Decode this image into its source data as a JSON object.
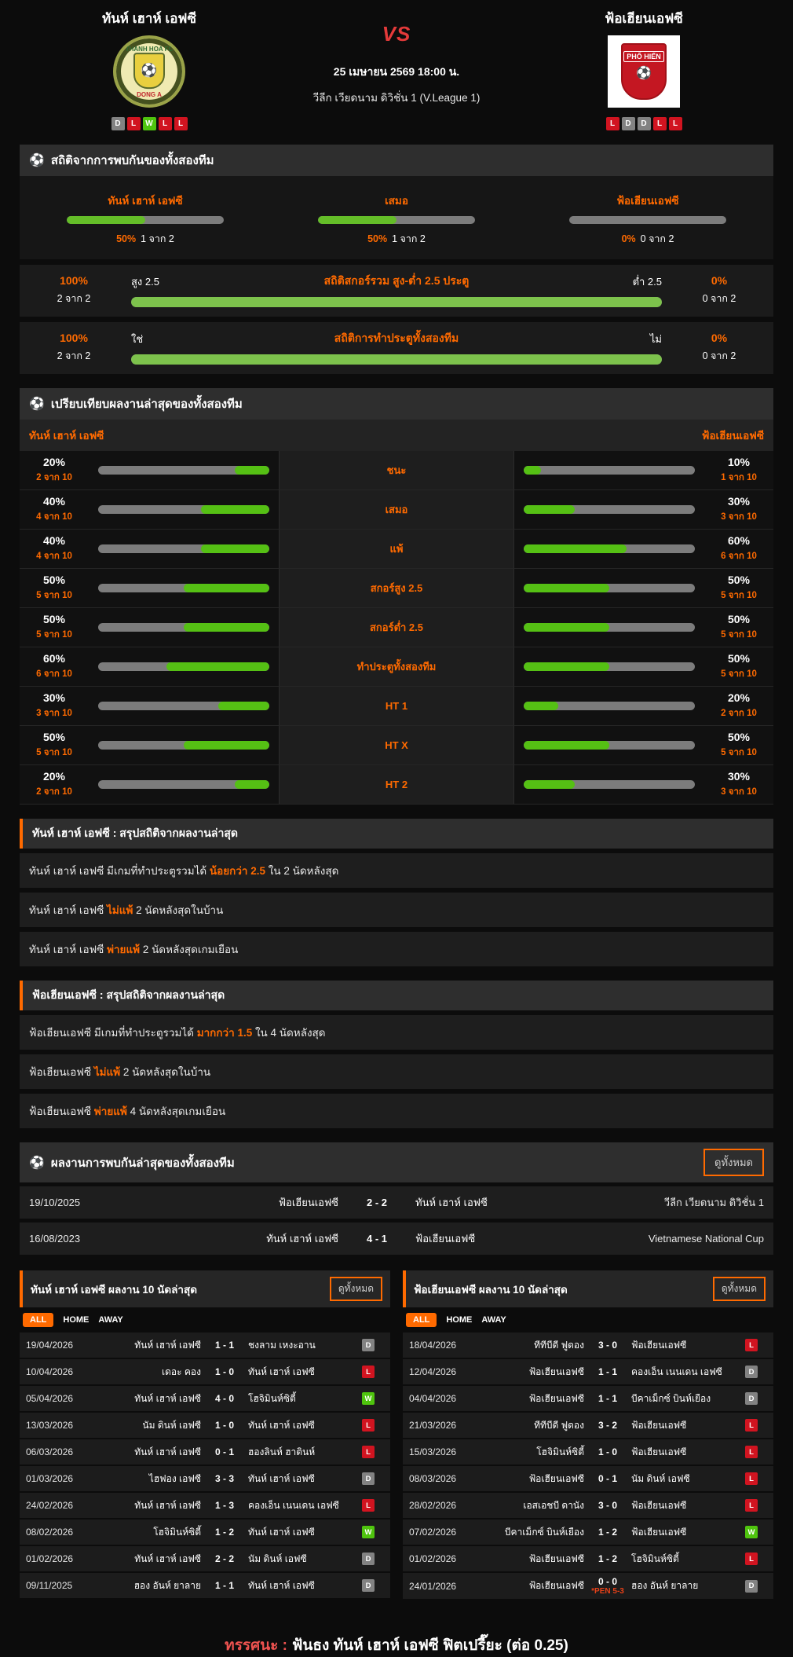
{
  "colors": {
    "accent": "#ff6a00",
    "green": "#55c014",
    "red": "#d11420",
    "gray": "#828282",
    "vs_red": "#e43a3a"
  },
  "header": {
    "home_team": "ทันห์ เฮาห์ เอฟซี",
    "away_team": "ฟ้อเฮียนเอฟซี",
    "vs": "VS",
    "datetime": "25 เมษายน 2569 18:00 น.",
    "league": "วีลีก เวียดนาม ดิวิชั่น 1 (V.League 1)",
    "home_logo": {
      "top": "THANH HOA FC",
      "bottom": "DONG A",
      "ball": "⚽"
    },
    "away_logo": {
      "text": "PHỐ HIẾN",
      "ball": "⚽"
    },
    "home_form": [
      "D",
      "L",
      "W",
      "L",
      "L"
    ],
    "away_form": [
      "L",
      "D",
      "D",
      "L",
      "L"
    ]
  },
  "h2h_stats": {
    "icon": "⚽",
    "title": "สถิติจากการพบกันของทั้งสองทีม",
    "cols": [
      {
        "label": "ทันห์ เฮาห์ เอฟซี",
        "pct": 50,
        "pct_label": "50%",
        "count": "1 จาก 2"
      },
      {
        "label": "เสมอ",
        "pct": 50,
        "pct_label": "50%",
        "count": "1 จาก 2"
      },
      {
        "label": "ฟ้อเฮียนเอฟซี",
        "pct": 0,
        "pct_label": "0%",
        "count": "0 จาก 2"
      }
    ],
    "ou": {
      "title": "สถิติสกอร์รวม สูง-ต่ำ 2.5 ประตู",
      "left_pct": "100%",
      "left_count": "2 จาก 2",
      "left_label": "สูง 2.5",
      "right_label": "ต่ำ 2.5",
      "right_pct": "0%",
      "right_count": "0 จาก 2",
      "pct": 100
    },
    "btts": {
      "title": "สถิติการทำประตูทั้งสองทีม",
      "left_pct": "100%",
      "left_count": "2 จาก 2",
      "left_label": "ใช่",
      "right_label": "ไม่",
      "right_pct": "0%",
      "right_count": "0 จาก 2",
      "pct": 100
    }
  },
  "compare": {
    "icon": "⚽",
    "title": "เปรียบเทียบผลงานล่าสุดของทั้งสองทีม",
    "home_team": "ทันห์ เฮาห์ เอฟซี",
    "away_team": "ฟ้อเฮียนเอฟซี",
    "rows": [
      {
        "label": "ชนะ",
        "home_pct_label": "20%",
        "home_count": "2 จาก 10",
        "home_pct": 20,
        "away_pct_label": "10%",
        "away_count": "1 จาก 10",
        "away_pct": 10
      },
      {
        "label": "เสมอ",
        "home_pct_label": "40%",
        "home_count": "4 จาก 10",
        "home_pct": 40,
        "away_pct_label": "30%",
        "away_count": "3 จาก 10",
        "away_pct": 30
      },
      {
        "label": "แพ้",
        "home_pct_label": "40%",
        "home_count": "4 จาก 10",
        "home_pct": 40,
        "away_pct_label": "60%",
        "away_count": "6 จาก 10",
        "away_pct": 60
      },
      {
        "label": "สกอร์สูง 2.5",
        "home_pct_label": "50%",
        "home_count": "5 จาก 10",
        "home_pct": 50,
        "away_pct_label": "50%",
        "away_count": "5 จาก 10",
        "away_pct": 50
      },
      {
        "label": "สกอร์ต่ำ 2.5",
        "home_pct_label": "50%",
        "home_count": "5 จาก 10",
        "home_pct": 50,
        "away_pct_label": "50%",
        "away_count": "5 จาก 10",
        "away_pct": 50
      },
      {
        "label": "ทำประตูทั้งสองทีม",
        "home_pct_label": "60%",
        "home_count": "6 จาก 10",
        "home_pct": 60,
        "away_pct_label": "50%",
        "away_count": "5 จาก 10",
        "away_pct": 50
      },
      {
        "label": "HT 1",
        "home_pct_label": "30%",
        "home_count": "3 จาก 10",
        "home_pct": 30,
        "away_pct_label": "20%",
        "away_count": "2 จาก 10",
        "away_pct": 20
      },
      {
        "label": "HT X",
        "home_pct_label": "50%",
        "home_count": "5 จาก 10",
        "home_pct": 50,
        "away_pct_label": "50%",
        "away_count": "5 จาก 10",
        "away_pct": 50
      },
      {
        "label": "HT 2",
        "home_pct_label": "20%",
        "home_count": "2 จาก 10",
        "home_pct": 20,
        "away_pct_label": "30%",
        "away_count": "3 จาก 10",
        "away_pct": 30
      }
    ]
  },
  "home_summary": {
    "title": "ทันห์ เฮาห์ เอฟซี : สรุปสถิติจากผลงานล่าสุด",
    "rows": [
      {
        "pre": "ทันห์ เฮาห์ เอฟซี  มีเกมที่ทำประตูรวมได้ ",
        "hl": "น้อยกว่า  2.5",
        "post": " ใน 2 นัดหลังสุด"
      },
      {
        "pre": "ทันห์ เฮาห์ เอฟซี ",
        "hl": "ไม่แพ้",
        "post": " 2 นัดหลังสุดในบ้าน"
      },
      {
        "pre": "ทันห์ เฮาห์ เอฟซี ",
        "hl": "พ่ายแพ้",
        "post": " 2 นัดหลังสุดเกมเยือน"
      }
    ]
  },
  "away_summary": {
    "title": "ฟ้อเฮียนเอฟซี : สรุปสถิติจากผลงานล่าสุด",
    "rows": [
      {
        "pre": "ฟ้อเฮียนเอฟซี  มีเกมที่ทำประตูรวมได้ ",
        "hl": "มากกว่า  1.5",
        "post": " ใน 4 นัดหลังสุด"
      },
      {
        "pre": "ฟ้อเฮียนเอฟซี ",
        "hl": "ไม่แพ้",
        "post": " 2 นัดหลังสุดในบ้าน"
      },
      {
        "pre": "ฟ้อเฮียนเอฟซี ",
        "hl": "พ่ายแพ้",
        "post": " 4 นัดหลังสุดเกมเยือน"
      }
    ]
  },
  "h2h_results": {
    "icon": "⚽",
    "title": "ผลงานการพบกันล่าสุดของทั้งสองทีม",
    "view_all": "ดูทั้งหมด",
    "rows": [
      {
        "date": "19/10/2025",
        "home": "ฟ้อเฮียนเอฟซี",
        "score": "2 - 2",
        "away": "ทันห์ เฮาห์ เอฟซี",
        "league": "วีลีก เวียดนาม ดิวิชั่น 1"
      },
      {
        "date": "16/08/2023",
        "home": "ทันห์ เฮาห์ เอฟซี",
        "score": "4 - 1",
        "away": "ฟ้อเฮียนเอฟซี",
        "league": "Vietnamese National Cup"
      }
    ]
  },
  "home_recent": {
    "title": "ทันห์ เฮาห์ เอฟซี ผลงาน 10 นัดล่าสุด",
    "view_all": "ดูทั้งหมด",
    "tabs": {
      "all": "ALL",
      "home": "HOME",
      "away": "AWAY"
    },
    "rows": [
      {
        "date": "19/04/2026",
        "home": "ทันห์ เฮาห์ เอฟซี",
        "score": "1 - 1",
        "away": "ชงลาม เหงะอาน",
        "result": "D"
      },
      {
        "date": "10/04/2026",
        "home": "เดอะ คอง",
        "score": "1 - 0",
        "away": "ทันห์ เฮาห์ เอฟซี",
        "result": "L"
      },
      {
        "date": "05/04/2026",
        "home": "ทันห์ เฮาห์ เอฟซี",
        "score": "4 - 0",
        "away": "โฮจิมินห์ซิตี้",
        "result": "W"
      },
      {
        "date": "13/03/2026",
        "home": "นัม ดินห์ เอฟซี",
        "score": "1 - 0",
        "away": "ทันห์ เฮาห์ เอฟซี",
        "result": "L"
      },
      {
        "date": "06/03/2026",
        "home": "ทันห์ เฮาห์ เอฟซี",
        "score": "0 - 1",
        "away": "ฮองลินห์ ฮาตินห์",
        "result": "L"
      },
      {
        "date": "01/03/2026",
        "home": "ไฮฟอง เอฟซี",
        "score": "3 - 3",
        "away": "ทันห์ เฮาห์ เอฟซี",
        "result": "D"
      },
      {
        "date": "24/02/2026",
        "home": "ทันห์ เฮาห์ เอฟซี",
        "score": "1 - 3",
        "away": "คองเอ็น เนนเดน เอฟซี",
        "result": "L"
      },
      {
        "date": "08/02/2026",
        "home": "โฮจิมินห์ซิตี้",
        "score": "1 - 2",
        "away": "ทันห์ เฮาห์ เอฟซี",
        "result": "W"
      },
      {
        "date": "01/02/2026",
        "home": "ทันห์ เฮาห์ เอฟซี",
        "score": "2 - 2",
        "away": "นัม ดินห์ เอฟซี",
        "result": "D"
      },
      {
        "date": "09/11/2025",
        "home": "ฮอง อันห์ ยาลาย",
        "score": "1 - 1",
        "away": "ทันห์ เฮาห์ เอฟซี",
        "result": "D"
      }
    ]
  },
  "away_recent": {
    "title": "ฟ้อเฮียนเอฟซี ผลงาน 10 นัดล่าสุด",
    "view_all": "ดูทั้งหมด",
    "tabs": {
      "all": "ALL",
      "home": "HOME",
      "away": "AWAY"
    },
    "rows": [
      {
        "date": "18/04/2026",
        "home": "ทีทีบีดี ฟูดอง",
        "score": "3 - 0",
        "away": "ฟ้อเฮียนเอฟซี",
        "result": "L"
      },
      {
        "date": "12/04/2026",
        "home": "ฟ้อเฮียนเอฟซี",
        "score": "1 - 1",
        "away": "คองเอ็น เนนเดน เอฟซี",
        "result": "D"
      },
      {
        "date": "04/04/2026",
        "home": "ฟ้อเฮียนเอฟซี",
        "score": "1 - 1",
        "away": "บีคาเม็กซ์ บินห์เยือง",
        "result": "D"
      },
      {
        "date": "21/03/2026",
        "home": "ทีทีบีดี ฟูดอง",
        "score": "3 - 2",
        "away": "ฟ้อเฮียนเอฟซี",
        "result": "L"
      },
      {
        "date": "15/03/2026",
        "home": "โฮจิมินห์ซิตี้",
        "score": "1 - 0",
        "away": "ฟ้อเฮียนเอฟซี",
        "result": "L"
      },
      {
        "date": "08/03/2026",
        "home": "ฟ้อเฮียนเอฟซี",
        "score": "0 - 1",
        "away": "นัม ดินห์ เอฟซี",
        "result": "L"
      },
      {
        "date": "28/02/2026",
        "home": "เอสเอชบี ดานัง",
        "score": "3 - 0",
        "away": "ฟ้อเฮียนเอฟซี",
        "result": "L"
      },
      {
        "date": "07/02/2026",
        "home": "บีคาเม็กซ์ บินห์เยือง",
        "score": "1 - 2",
        "away": "ฟ้อเฮียนเอฟซี",
        "result": "W"
      },
      {
        "date": "01/02/2026",
        "home": "ฟ้อเฮียนเอฟซี",
        "score": "1 - 2",
        "away": "โฮจิมินห์ซิตี้",
        "result": "L"
      },
      {
        "date": "24/01/2026",
        "home": "ฟ้อเฮียนเอฟซี",
        "score": "0 - 0",
        "note": "*PEN 5-3",
        "away": "ฮอง อันห์ ยาลาย",
        "result": "D"
      }
    ]
  },
  "footer": {
    "label": "ทรรศนะ :",
    "text": "ฟันธง ทันห์ เฮาห์ เอฟซี ฟิตเปรี๊ยะ (ต่อ 0.25)"
  }
}
